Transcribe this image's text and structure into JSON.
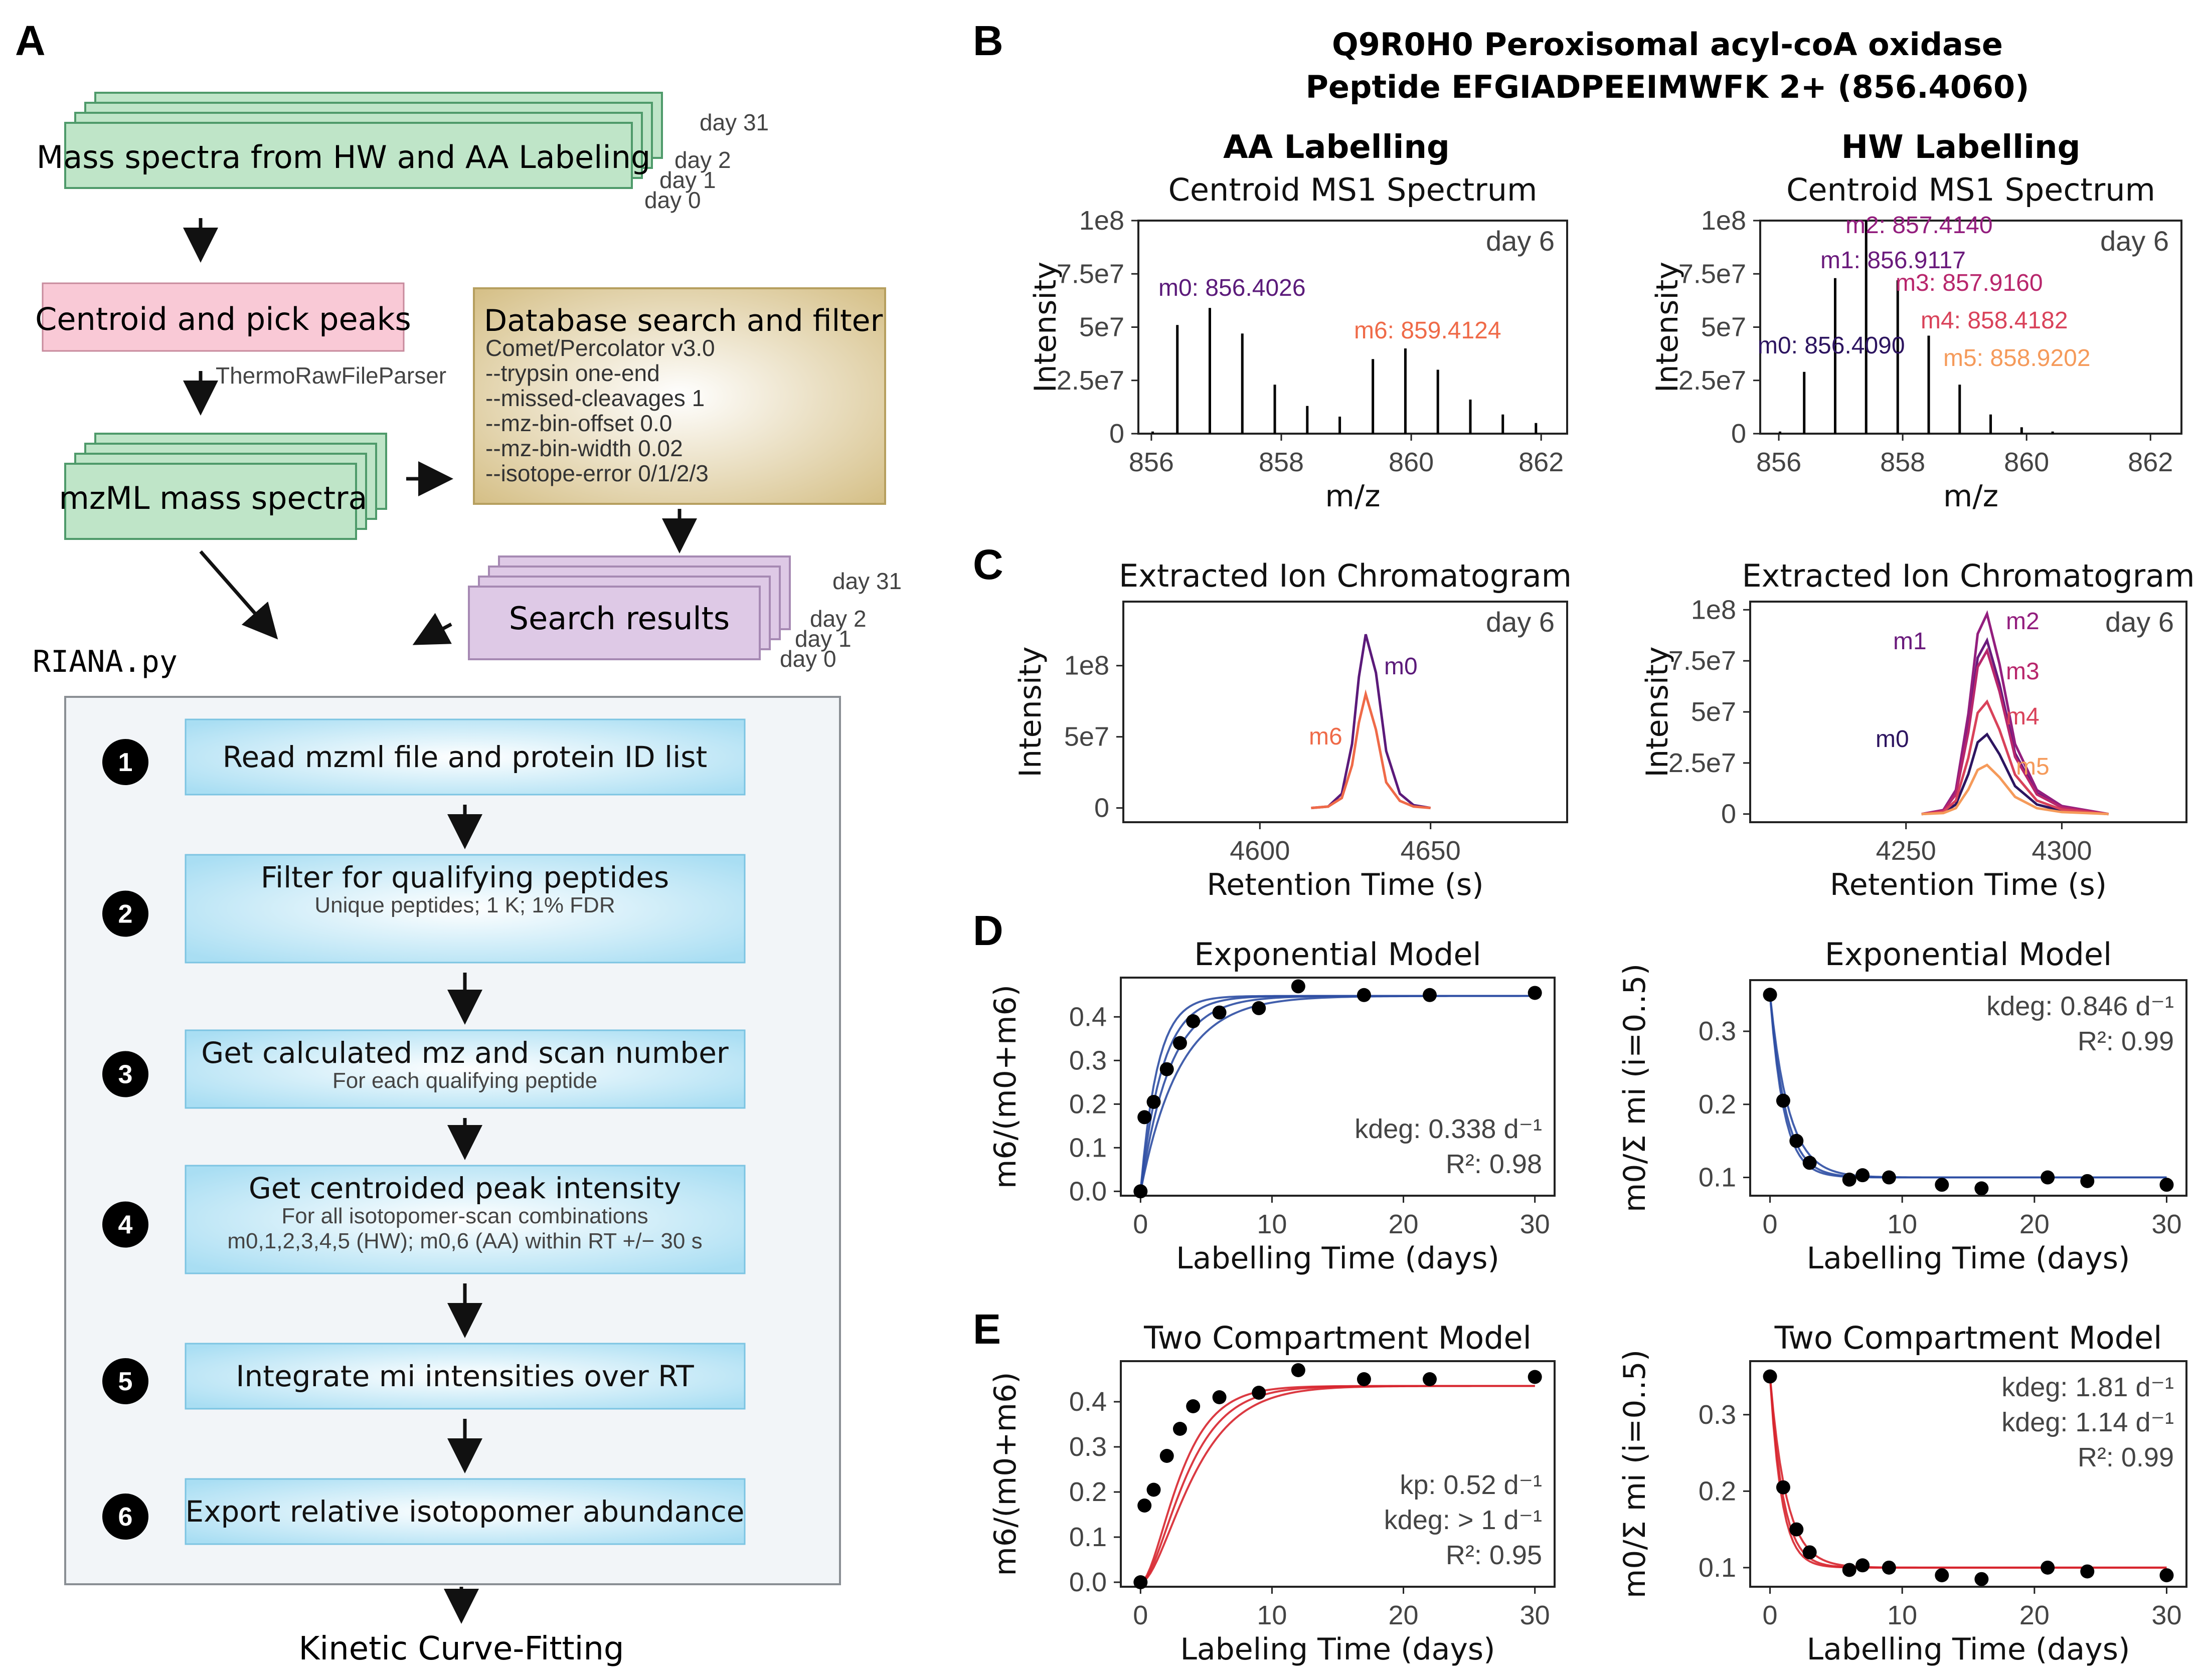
{
  "panel_labels": {
    "A": "A",
    "B": "B",
    "C": "C",
    "D": "D",
    "E": "E"
  },
  "flow": {
    "spectra_box": "Mass spectra from HW and AA Labeling",
    "days_top": [
      "day 31",
      "day 2",
      "day 1",
      "day 0"
    ],
    "centroid_box": "Centroid and pick peaks",
    "parser_label": "ThermoRawFileParser",
    "mzml_box": "mzML mass spectra",
    "db_title": "Database search and filter",
    "db_lines": [
      "Comet/Percolator v3.0",
      "--trypsin one-end",
      "--missed-cleavages 1",
      "--mz-bin-offset 0.0",
      "--mz-bin-width 0.02",
      "--isotope-error 0/1/2/3"
    ],
    "search_box": "Search results",
    "days_search": [
      "day 31",
      "day 2",
      "day 1",
      "day 0"
    ],
    "riana_label": "RIANA.py",
    "steps": [
      {
        "num": "1",
        "title": "Read mzml file  and protein ID list",
        "sub": ""
      },
      {
        "num": "2",
        "title": "Filter for qualifying peptides",
        "sub": "Unique peptides; 1 K; 1% FDR"
      },
      {
        "num": "3",
        "title": "Get calculated mz and scan number",
        "sub": "For each qualifying peptide"
      },
      {
        "num": "4",
        "title": "Get centroided peak intensity",
        "sub": "For all isotopomer-scan combinations",
        "sub2": "m0,1,2,3,4,5 (HW); m0,6 (AA) within RT +/− 30 s"
      },
      {
        "num": "5",
        "title": "Integrate mi intensities over RT",
        "sub": ""
      },
      {
        "num": "6",
        "title": "Export relative isotopomer abundance",
        "sub": ""
      }
    ],
    "final_label": "Kinetic Curve-Fitting"
  },
  "header": {
    "line1": "Q9R0H0 Peroxisomal acyl-coA oxidase",
    "line2": "Peptide EFGIADPEEIMWFK 2+ (856.4060)",
    "col_left": "AA Labelling",
    "col_right": "HW Labelling"
  },
  "colors": {
    "green_box": "#bfe5c8",
    "green_border": "#4e9a6a",
    "pink_box": "#f9c9d6",
    "purple_box": "#dec9e6",
    "tan_box": "#d8c492",
    "step_box": "#bfe6f5",
    "m0_purple": "#5b1a7a",
    "m6_orange": "#ef6a48",
    "hw_m0": "#2d1560",
    "hw_m1": "#6a1a7c",
    "hw_m2": "#931e7e",
    "hw_m3": "#b8266c",
    "hw_m4": "#d9425a",
    "hw_m5": "#f59a5a",
    "fit_blue": "#2d4ea3",
    "fit_red": "#d7252e"
  },
  "chart_data": [
    {
      "id": "B-left",
      "type": "bar",
      "title": "Centroid MS1 Spectrum",
      "xlabel": "m/z",
      "ylabel": "Intensity",
      "xlim": [
        855.8,
        862.4
      ],
      "ylim": [
        0,
        100000000
      ],
      "xticks": [
        "856",
        "858",
        "860",
        "862"
      ],
      "yticks": [
        "0",
        "2.5e7",
        "5e7",
        "7.5e7",
        "1e8"
      ],
      "corner_note": "day 6",
      "annotations": [
        {
          "label": "m0: 856.4026",
          "color": "#5b1a7a"
        },
        {
          "label": "m6: 859.4124",
          "color": "#ef6a48"
        }
      ],
      "x": [
        856.02,
        856.4,
        856.9,
        857.4,
        857.9,
        858.4,
        858.9,
        859.41,
        859.91,
        860.41,
        860.91,
        861.41,
        861.92
      ],
      "values": [
        1000000,
        51000000,
        59000000,
        47000000,
        23000000,
        13000000,
        8000000,
        35000000,
        40000000,
        30000000,
        16000000,
        9000000,
        5000000
      ]
    },
    {
      "id": "B-right",
      "type": "bar",
      "title": "Centroid MS1 Spectrum",
      "xlabel": "m/z",
      "ylabel": "Intensity",
      "xlim": [
        855.7,
        862.5
      ],
      "ylim": [
        0,
        100000000
      ],
      "xticks": [
        "856",
        "858",
        "860",
        "862"
      ],
      "yticks": [
        "0",
        "2.5e7",
        "5e7",
        "7.5e7",
        "1e8"
      ],
      "corner_note": "day 6",
      "annotations": [
        {
          "label": "m2: 857.4140",
          "color": "#931e7e"
        },
        {
          "label": "m1: 856.9117",
          "color": "#6a1a7c"
        },
        {
          "label": "m3: 857.9160",
          "color": "#b8266c"
        },
        {
          "label": "m4: 858.4182",
          "color": "#d9425a"
        },
        {
          "label": "m0: 856.4090",
          "color": "#2d1560"
        },
        {
          "label": "m5: 858.9202",
          "color": "#f59a5a"
        }
      ],
      "x": [
        856.02,
        856.41,
        856.91,
        857.41,
        857.92,
        858.42,
        858.92,
        859.42,
        859.92,
        860.42
      ],
      "values": [
        1000000,
        29000000,
        73000000,
        100000000,
        72000000,
        46000000,
        23000000,
        9000000,
        3000000,
        1000000
      ]
    },
    {
      "id": "C-left",
      "type": "line",
      "title": "Extracted Ion Chromatogram",
      "xlabel": "Retention Time (s)",
      "ylabel": "Intensity",
      "xlim": [
        4560,
        4690
      ],
      "ylim": [
        -10000000,
        145000000
      ],
      "xticks": [
        "4600",
        "4650"
      ],
      "yticks": [
        "0",
        "5e7",
        "1e8"
      ],
      "corner_note": "day 6",
      "series": [
        {
          "name": "m0",
          "color": "#5b1a7a",
          "x": [
            4615,
            4620,
            4624,
            4627,
            4629,
            4631,
            4634,
            4637,
            4641,
            4645,
            4650
          ],
          "y": [
            0,
            1000000,
            10000000,
            45000000,
            92000000,
            122000000,
            95000000,
            40000000,
            10000000,
            2000000,
            0
          ]
        },
        {
          "name": "m6",
          "color": "#ef6a48",
          "x": [
            4615,
            4620,
            4624,
            4627,
            4629,
            4631,
            4634,
            4637,
            4641,
            4645,
            4650
          ],
          "y": [
            0,
            1000000,
            7000000,
            30000000,
            60000000,
            80000000,
            55000000,
            18000000,
            5000000,
            1000000,
            0
          ]
        }
      ]
    },
    {
      "id": "C-right",
      "type": "line",
      "title": "Extracted Ion Chromatogram",
      "xlabel": "Retention Time (s)",
      "ylabel": "Intensity",
      "xlim": [
        4200,
        4340
      ],
      "ylim": [
        -4000000,
        104000000
      ],
      "xticks": [
        "4250",
        "4300"
      ],
      "yticks": [
        "0",
        "2.5e7",
        "5e7",
        "7.5e7",
        "1e8"
      ],
      "corner_note": "day 6",
      "series": [
        {
          "name": "m0",
          "color": "#2d1560",
          "peak": 39000000
        },
        {
          "name": "m1",
          "color": "#6a1a7c",
          "peak": 85000000
        },
        {
          "name": "m2",
          "color": "#931e7e",
          "peak": 98000000
        },
        {
          "name": "m3",
          "color": "#b8266c",
          "peak": 80000000
        },
        {
          "name": "m4",
          "color": "#d9425a",
          "peak": 55000000
        },
        {
          "name": "m5",
          "color": "#f59a5a",
          "peak": 24000000
        }
      ],
      "x": [
        4255,
        4262,
        4266,
        4270,
        4273,
        4276,
        4280,
        4285,
        4292,
        4300,
        4315
      ],
      "shape": [
        0,
        0.02,
        0.12,
        0.5,
        0.9,
        1.0,
        0.75,
        0.35,
        0.12,
        0.04,
        0
      ]
    },
    {
      "id": "D-left",
      "type": "scatter",
      "title": "Exponential Model",
      "xlabel": "Labelling Time (days)",
      "ylabel": "m6/(m0+m6)",
      "xlim": [
        -1.5,
        31.5
      ],
      "ylim": [
        -0.01,
        0.49
      ],
      "xticks": [
        "0",
        "10",
        "20",
        "30"
      ],
      "yticks": [
        "0.0",
        "0.1",
        "0.2",
        "0.3",
        "0.4"
      ],
      "stats": [
        "kdeg: 0.338 d⁻¹",
        "R²: 0.98"
      ],
      "x": [
        0,
        0.3,
        1,
        2,
        3,
        4,
        6,
        9,
        12,
        17,
        22,
        30
      ],
      "y": [
        0.0,
        0.17,
        0.205,
        0.28,
        0.34,
        0.39,
        0.41,
        0.42,
        0.47,
        0.45,
        0.45,
        0.455
      ],
      "fit": {
        "model": "exp_rise",
        "plateau": 0.448,
        "k": [
          0.338,
          0.45,
          0.6,
          0.78
        ],
        "color": "#2d4ea3"
      }
    },
    {
      "id": "D-right",
      "type": "scatter",
      "title": "Exponential Model",
      "xlabel": "Labelling Time (days)",
      "ylabel": "m0/Σ mi (i=0..5)",
      "xlim": [
        -1.5,
        31.5
      ],
      "ylim": [
        0.075,
        0.37
      ],
      "xticks": [
        "0",
        "10",
        "20",
        "30"
      ],
      "yticks": [
        "0.1",
        "0.2",
        "0.3"
      ],
      "stats": [
        "kdeg: 0.846 d⁻¹",
        "R²: 0.99"
      ],
      "x": [
        0,
        1,
        2,
        3,
        6,
        7,
        9,
        13,
        16,
        21,
        24,
        30
      ],
      "y": [
        0.35,
        0.205,
        0.15,
        0.12,
        0.097,
        0.103,
        0.1,
        0.09,
        0.085,
        0.1,
        0.095,
        0.09
      ],
      "fit": {
        "model": "exp_decay",
        "start": 0.35,
        "plateau": 0.1,
        "k": [
          0.7,
          0.846,
          0.95
        ],
        "color": "#2d4ea3"
      }
    },
    {
      "id": "E-left",
      "type": "scatter",
      "title": "Two Compartment Model",
      "xlabel": "Labeling Time (days)",
      "ylabel": "m6/(m0+m6)",
      "xlim": [
        -1.5,
        31.5
      ],
      "ylim": [
        -0.01,
        0.49
      ],
      "xticks": [
        "0",
        "10",
        "20",
        "30"
      ],
      "yticks": [
        "0.0",
        "0.1",
        "0.2",
        "0.3",
        "0.4"
      ],
      "stats": [
        "kp: 0.52 d⁻¹",
        "kdeg: > 1 d⁻¹",
        "R²: 0.95"
      ],
      "x": [
        0,
        0.3,
        1,
        2,
        3,
        4,
        6,
        9,
        12,
        17,
        22,
        30
      ],
      "y": [
        0.0,
        0.17,
        0.205,
        0.28,
        0.34,
        0.39,
        0.41,
        0.42,
        0.47,
        0.45,
        0.45,
        0.455
      ],
      "fit": {
        "model": "two_comp",
        "plateau": 0.435,
        "kp": [
          0.45,
          0.52,
          0.6
        ],
        "color": "#d7252e"
      }
    },
    {
      "id": "E-right",
      "type": "scatter",
      "title": "Two Compartment Model",
      "xlabel": "Labelling Time (days)",
      "ylabel": "m0/Σ mi (i=0..5)",
      "xlim": [
        -1.5,
        31.5
      ],
      "ylim": [
        0.075,
        0.37
      ],
      "xticks": [
        "0",
        "10",
        "20",
        "30"
      ],
      "yticks": [
        "0.1",
        "0.2",
        "0.3"
      ],
      "stats": [
        "kdeg: 1.81 d⁻¹",
        "kdeg: 1.14 d⁻¹",
        "R²: 0.99"
      ],
      "x": [
        0,
        1,
        2,
        3,
        6,
        7,
        9,
        13,
        16,
        21,
        24,
        30
      ],
      "y": [
        0.35,
        0.205,
        0.15,
        0.12,
        0.097,
        0.103,
        0.1,
        0.09,
        0.085,
        0.1,
        0.095,
        0.09
      ],
      "fit": {
        "model": "exp_decay",
        "start": 0.35,
        "plateau": 0.1,
        "k": [
          0.8,
          1.0,
          1.14
        ],
        "color": "#d7252e"
      }
    }
  ]
}
